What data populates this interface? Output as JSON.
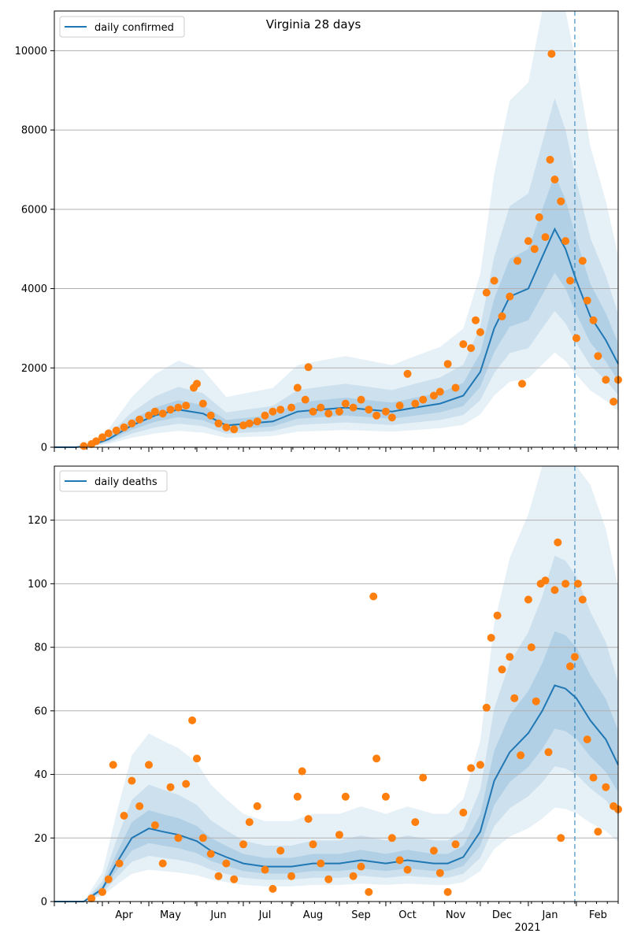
{
  "title": "Virginia 28 days",
  "x_axis": {
    "month_ticks": [
      "Apr",
      "May",
      "Jun",
      "Jul",
      "Aug",
      "Sep",
      "Oct",
      "Nov",
      "Dec",
      "Jan",
      "Feb"
    ],
    "year_label": "2021",
    "range": [
      "2020-03-01",
      "2021-02-28"
    ]
  },
  "marker_date": "2021-01-31",
  "colors": {
    "line": "#1f77b4",
    "points": "#ff7f0e",
    "band": "#1f77b4",
    "grid": "#b0b0b0"
  },
  "chart_data": [
    {
      "type": "line",
      "legend": "daily confirmed",
      "ylim": [
        0,
        11000
      ],
      "yticks": [
        0,
        2000,
        4000,
        6000,
        8000,
        10000
      ],
      "grid": "horizontal",
      "legend_position": "top-left",
      "dates": [
        "2020-03-01",
        "2020-03-15",
        "2020-03-25",
        "2020-04-05",
        "2020-04-20",
        "2020-05-05",
        "2020-05-20",
        "2020-06-05",
        "2020-06-20",
        "2020-07-05",
        "2020-07-20",
        "2020-08-05",
        "2020-08-20",
        "2020-09-05",
        "2020-09-20",
        "2020-10-05",
        "2020-10-20",
        "2020-11-05",
        "2020-11-20",
        "2020-12-01",
        "2020-12-10",
        "2020-12-20",
        "2021-01-01",
        "2021-01-10",
        "2021-01-18",
        "2021-01-25",
        "2021-02-01",
        "2021-02-10",
        "2021-02-20",
        "2021-02-28"
      ],
      "rolling_mean": [
        0,
        0,
        50,
        200,
        550,
        800,
        950,
        850,
        550,
        600,
        650,
        900,
        950,
        1000,
        950,
        900,
        1000,
        1100,
        1300,
        1900,
        3000,
        3800,
        4000,
        4800,
        5500,
        5000,
        4200,
        3300,
        2700,
        2100
      ],
      "points": [
        [
          "2020-03-20",
          30
        ],
        [
          "2020-03-25",
          80
        ],
        [
          "2020-03-28",
          150
        ],
        [
          "2020-04-01",
          250
        ],
        [
          "2020-04-05",
          350
        ],
        [
          "2020-04-10",
          420
        ],
        [
          "2020-04-15",
          500
        ],
        [
          "2020-04-20",
          600
        ],
        [
          "2020-04-25",
          700
        ],
        [
          "2020-05-01",
          800
        ],
        [
          "2020-05-05",
          900
        ],
        [
          "2020-05-10",
          850
        ],
        [
          "2020-05-15",
          950
        ],
        [
          "2020-05-20",
          1000
        ],
        [
          "2020-05-25",
          1050
        ],
        [
          "2020-05-30",
          1500
        ],
        [
          "2020-06-01",
          1600
        ],
        [
          "2020-06-05",
          1100
        ],
        [
          "2020-06-10",
          800
        ],
        [
          "2020-06-15",
          600
        ],
        [
          "2020-06-20",
          500
        ],
        [
          "2020-06-25",
          450
        ],
        [
          "2020-07-01",
          550
        ],
        [
          "2020-07-05",
          600
        ],
        [
          "2020-07-10",
          650
        ],
        [
          "2020-07-15",
          800
        ],
        [
          "2020-07-20",
          900
        ],
        [
          "2020-07-25",
          950
        ],
        [
          "2020-08-01",
          1000
        ],
        [
          "2020-08-05",
          1500
        ],
        [
          "2020-08-10",
          1200
        ],
        [
          "2020-08-12",
          2020
        ],
        [
          "2020-08-15",
          900
        ],
        [
          "2020-08-20",
          1000
        ],
        [
          "2020-08-25",
          850
        ],
        [
          "2020-09-01",
          900
        ],
        [
          "2020-09-05",
          1100
        ],
        [
          "2020-09-10",
          1000
        ],
        [
          "2020-09-15",
          1200
        ],
        [
          "2020-09-20",
          950
        ],
        [
          "2020-09-25",
          800
        ],
        [
          "2020-10-01",
          900
        ],
        [
          "2020-10-05",
          750
        ],
        [
          "2020-10-10",
          1050
        ],
        [
          "2020-10-15",
          1850
        ],
        [
          "2020-10-20",
          1100
        ],
        [
          "2020-10-25",
          1200
        ],
        [
          "2020-11-01",
          1300
        ],
        [
          "2020-11-05",
          1400
        ],
        [
          "2020-11-10",
          2100
        ],
        [
          "2020-11-15",
          1500
        ],
        [
          "2020-11-20",
          2600
        ],
        [
          "2020-11-25",
          2500
        ],
        [
          "2020-11-28",
          3200
        ],
        [
          "2020-12-01",
          2900
        ],
        [
          "2020-12-05",
          3900
        ],
        [
          "2020-12-10",
          4200
        ],
        [
          "2020-12-15",
          3300
        ],
        [
          "2020-12-20",
          3800
        ],
        [
          "2020-12-25",
          4700
        ],
        [
          "2020-12-28",
          1600
        ],
        [
          "2021-01-01",
          5200
        ],
        [
          "2021-01-05",
          5000
        ],
        [
          "2021-01-08",
          5800
        ],
        [
          "2021-01-12",
          5300
        ],
        [
          "2021-01-15",
          7250
        ],
        [
          "2021-01-16",
          9920
        ],
        [
          "2021-01-18",
          6750
        ],
        [
          "2021-01-22",
          6200
        ],
        [
          "2021-01-25",
          5200
        ],
        [
          "2021-01-28",
          4200
        ],
        [
          "2021-02-01",
          2750
        ],
        [
          "2021-02-05",
          4700
        ],
        [
          "2021-02-08",
          3700
        ],
        [
          "2021-02-12",
          3200
        ],
        [
          "2021-02-15",
          2300
        ],
        [
          "2021-02-20",
          1700
        ],
        [
          "2021-02-25",
          1150
        ],
        [
          "2021-02-28",
          1700
        ]
      ]
    },
    {
      "type": "line",
      "legend": "daily deaths",
      "ylim": [
        0,
        137
      ],
      "yticks": [
        0,
        20,
        40,
        60,
        80,
        100,
        120
      ],
      "grid": "horizontal",
      "legend_position": "top-left",
      "dates": [
        "2020-03-01",
        "2020-03-20",
        "2020-04-01",
        "2020-04-10",
        "2020-04-20",
        "2020-05-01",
        "2020-05-10",
        "2020-05-20",
        "2020-06-01",
        "2020-06-10",
        "2020-06-20",
        "2020-07-01",
        "2020-07-15",
        "2020-08-01",
        "2020-08-15",
        "2020-09-01",
        "2020-09-15",
        "2020-10-01",
        "2020-10-15",
        "2020-11-01",
        "2020-11-10",
        "2020-11-20",
        "2020-12-01",
        "2020-12-10",
        "2020-12-20",
        "2021-01-01",
        "2021-01-10",
        "2021-01-18",
        "2021-01-25",
        "2021-02-01",
        "2021-02-10",
        "2021-02-20",
        "2021-02-28"
      ],
      "rolling_mean": [
        0,
        0,
        4,
        12,
        20,
        23,
        22,
        21,
        19,
        16,
        14,
        12,
        11,
        11,
        12,
        12,
        13,
        12,
        13,
        12,
        12,
        14,
        22,
        38,
        47,
        53,
        60,
        68,
        67,
        64,
        57,
        51,
        43
      ],
      "points": [
        [
          "2020-03-25",
          1
        ],
        [
          "2020-04-01",
          3
        ],
        [
          "2020-04-05",
          7
        ],
        [
          "2020-04-08",
          43
        ],
        [
          "2020-04-12",
          12
        ],
        [
          "2020-04-15",
          27
        ],
        [
          "2020-04-20",
          38
        ],
        [
          "2020-04-25",
          30
        ],
        [
          "2020-05-01",
          43
        ],
        [
          "2020-05-05",
          24
        ],
        [
          "2020-05-10",
          12
        ],
        [
          "2020-05-15",
          36
        ],
        [
          "2020-05-20",
          20
        ],
        [
          "2020-05-25",
          37
        ],
        [
          "2020-05-29",
          57
        ],
        [
          "2020-06-01",
          45
        ],
        [
          "2020-06-05",
          20
        ],
        [
          "2020-06-10",
          15
        ],
        [
          "2020-06-15",
          8
        ],
        [
          "2020-06-20",
          12
        ],
        [
          "2020-06-25",
          7
        ],
        [
          "2020-07-01",
          18
        ],
        [
          "2020-07-05",
          25
        ],
        [
          "2020-07-10",
          30
        ],
        [
          "2020-07-15",
          10
        ],
        [
          "2020-07-20",
          4
        ],
        [
          "2020-07-25",
          16
        ],
        [
          "2020-08-01",
          8
        ],
        [
          "2020-08-05",
          33
        ],
        [
          "2020-08-08",
          41
        ],
        [
          "2020-08-12",
          26
        ],
        [
          "2020-08-15",
          18
        ],
        [
          "2020-08-20",
          12
        ],
        [
          "2020-08-25",
          7
        ],
        [
          "2020-09-01",
          21
        ],
        [
          "2020-09-05",
          33
        ],
        [
          "2020-09-10",
          8
        ],
        [
          "2020-09-15",
          11
        ],
        [
          "2020-09-20",
          3
        ],
        [
          "2020-09-23",
          96
        ],
        [
          "2020-09-25",
          45
        ],
        [
          "2020-10-01",
          33
        ],
        [
          "2020-10-05",
          20
        ],
        [
          "2020-10-10",
          13
        ],
        [
          "2020-10-15",
          10
        ],
        [
          "2020-10-20",
          25
        ],
        [
          "2020-10-25",
          39
        ],
        [
          "2020-11-01",
          16
        ],
        [
          "2020-11-05",
          9
        ],
        [
          "2020-11-10",
          3
        ],
        [
          "2020-11-15",
          18
        ],
        [
          "2020-11-20",
          28
        ],
        [
          "2020-11-25",
          42
        ],
        [
          "2020-12-01",
          43
        ],
        [
          "2020-12-05",
          61
        ],
        [
          "2020-12-08",
          83
        ],
        [
          "2020-12-12",
          90
        ],
        [
          "2020-12-15",
          73
        ],
        [
          "2020-12-20",
          77
        ],
        [
          "2020-12-23",
          64
        ],
        [
          "2020-12-27",
          46
        ],
        [
          "2021-01-01",
          95
        ],
        [
          "2021-01-03",
          80
        ],
        [
          "2021-01-06",
          63
        ],
        [
          "2021-01-09",
          100
        ],
        [
          "2021-01-12",
          101
        ],
        [
          "2021-01-14",
          47
        ],
        [
          "2021-01-18",
          98
        ],
        [
          "2021-01-20",
          113
        ],
        [
          "2021-01-22",
          20
        ],
        [
          "2021-01-25",
          100
        ],
        [
          "2021-01-28",
          74
        ],
        [
          "2021-01-31",
          77
        ],
        [
          "2021-02-02",
          100
        ],
        [
          "2021-02-05",
          95
        ],
        [
          "2021-02-08",
          51
        ],
        [
          "2021-02-12",
          39
        ],
        [
          "2021-02-15",
          22
        ],
        [
          "2021-02-20",
          36
        ],
        [
          "2021-02-25",
          30
        ],
        [
          "2021-02-28",
          29
        ]
      ]
    }
  ]
}
